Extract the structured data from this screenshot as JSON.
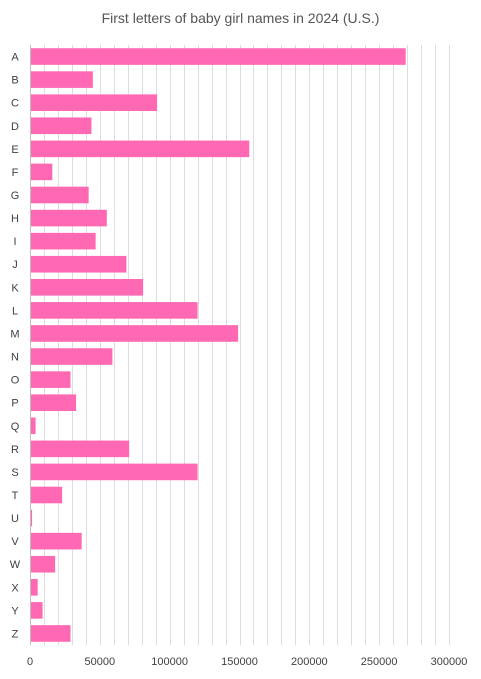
{
  "chart_data": {
    "type": "bar",
    "orientation": "horizontal",
    "title": "First letters of baby girl names in 2024 (U.S.)",
    "xlabel": "",
    "ylabel": "",
    "categories": [
      "A",
      "B",
      "C",
      "D",
      "E",
      "F",
      "G",
      "H",
      "I",
      "J",
      "K",
      "L",
      "M",
      "N",
      "O",
      "P",
      "Q",
      "R",
      "S",
      "T",
      "U",
      "V",
      "W",
      "X",
      "Y",
      "Z"
    ],
    "values": [
      269000,
      45000,
      91000,
      44000,
      157000,
      16000,
      42000,
      55000,
      47000,
      69000,
      81000,
      120000,
      149000,
      59000,
      29000,
      33000,
      4000,
      71000,
      120000,
      23000,
      1500,
      37000,
      18000,
      5500,
      9000,
      29000
    ],
    "xlim": [
      0,
      300000
    ],
    "xticks": [
      0,
      50000,
      100000,
      150000,
      200000,
      250000,
      300000
    ],
    "xtick_labels": [
      "0",
      "50000",
      "100000",
      "150000",
      "200000",
      "250000",
      "300000"
    ],
    "minor_gridlines": true,
    "bar_color": "#ff69b4",
    "grid_color": "#dddddd",
    "legend": "none"
  }
}
